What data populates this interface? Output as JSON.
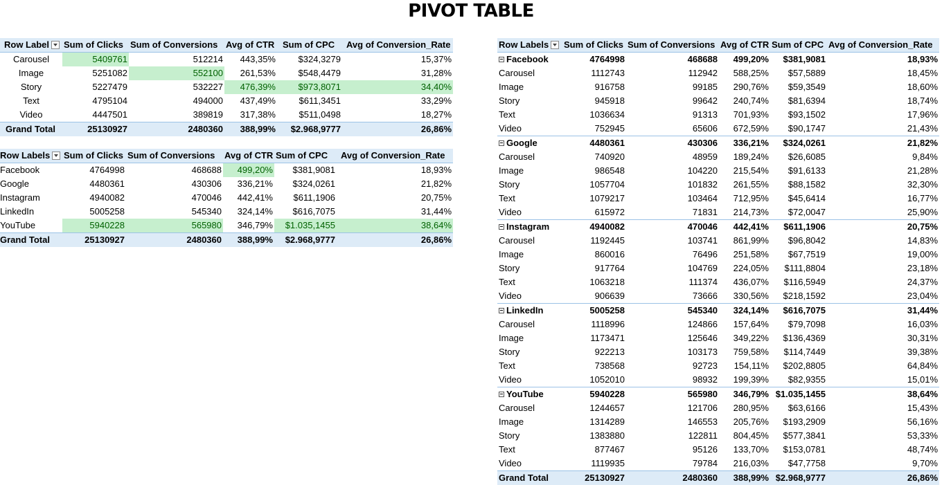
{
  "title": "PIVOT TABLE",
  "table1": {
    "headers": [
      "Row Label",
      "Sum of Clicks",
      "Sum of Conversions",
      "Avg of CTR",
      "Sum of CPC",
      "Avg of Conversion_Rate"
    ],
    "rows": [
      {
        "label": "Carousel",
        "clicks": "5409761",
        "conversions": "512214",
        "ctr": "443,35%",
        "cpc": "$324,3279",
        "rate": "15,37%"
      },
      {
        "label": "Image",
        "clicks": "5251082",
        "conversions": "552100",
        "ctr": "261,53%",
        "cpc": "$548,4479",
        "rate": "31,28%"
      },
      {
        "label": "Story",
        "clicks": "5227479",
        "conversions": "532227",
        "ctr": "476,39%",
        "cpc": "$973,8071",
        "rate": "34,40%"
      },
      {
        "label": "Text",
        "clicks": "4795104",
        "conversions": "494000",
        "ctr": "437,49%",
        "cpc": "$611,3451",
        "rate": "33,29%"
      },
      {
        "label": "Video",
        "clicks": "4447501",
        "conversions": "389819",
        "ctr": "317,38%",
        "cpc": "$511,0498",
        "rate": "18,27%"
      }
    ],
    "total": {
      "label": "Grand Total",
      "clicks": "25130927",
      "conversions": "2480360",
      "ctr": "388,99%",
      "cpc": "$2.968,9777",
      "rate": "26,86%"
    }
  },
  "table2": {
    "headers": [
      "Row Labels",
      "Sum of Clicks",
      "Sum of Conversions",
      "Avg of CTR",
      "Sum of CPC",
      "Avg of Conversion_Rate"
    ],
    "rows": [
      {
        "label": "Facebook",
        "clicks": "4764998",
        "conversions": "468688",
        "ctr": "499,20%",
        "cpc": "$381,9081",
        "rate": "18,93%"
      },
      {
        "label": "Google",
        "clicks": "4480361",
        "conversions": "430306",
        "ctr": "336,21%",
        "cpc": "$324,0261",
        "rate": "21,82%"
      },
      {
        "label": "Instagram",
        "clicks": "4940082",
        "conversions": "470046",
        "ctr": "442,41%",
        "cpc": "$611,1906",
        "rate": "20,75%"
      },
      {
        "label": "LinkedIn",
        "clicks": "5005258",
        "conversions": "545340",
        "ctr": "324,14%",
        "cpc": "$616,7075",
        "rate": "31,44%"
      },
      {
        "label": "YouTube",
        "clicks": "5940228",
        "conversions": "565980",
        "ctr": "346,79%",
        "cpc": "$1.035,1455",
        "rate": "38,64%"
      }
    ],
    "total": {
      "label": "Grand Total",
      "clicks": "25130927",
      "conversions": "2480360",
      "ctr": "388,99%",
      "cpc": "$2.968,9777",
      "rate": "26,86%"
    }
  },
  "table3": {
    "headers": [
      "Row Labels",
      "Sum of Clicks",
      "Sum of Conversions",
      "Avg of CTR",
      "Sum of CPC",
      "Avg of Conversion_Rate"
    ],
    "groups": [
      {
        "label": "Facebook",
        "clicks": "4764998",
        "conversions": "468688",
        "ctr": "499,20%",
        "cpc": "$381,9081",
        "rate": "18,93%",
        "items": [
          {
            "label": "Carousel",
            "clicks": "1112743",
            "conversions": "112942",
            "ctr": "588,25%",
            "cpc": "$57,5889",
            "rate": "18,45%"
          },
          {
            "label": "Image",
            "clicks": "916758",
            "conversions": "99185",
            "ctr": "290,76%",
            "cpc": "$59,3549",
            "rate": "18,60%"
          },
          {
            "label": "Story",
            "clicks": "945918",
            "conversions": "99642",
            "ctr": "240,74%",
            "cpc": "$81,6394",
            "rate": "18,74%"
          },
          {
            "label": "Text",
            "clicks": "1036634",
            "conversions": "91313",
            "ctr": "701,93%",
            "cpc": "$93,1502",
            "rate": "17,96%"
          },
          {
            "label": "Video",
            "clicks": "752945",
            "conversions": "65606",
            "ctr": "672,59%",
            "cpc": "$90,1747",
            "rate": "21,43%"
          }
        ]
      },
      {
        "label": "Google",
        "clicks": "4480361",
        "conversions": "430306",
        "ctr": "336,21%",
        "cpc": "$324,0261",
        "rate": "21,82%",
        "items": [
          {
            "label": "Carousel",
            "clicks": "740920",
            "conversions": "48959",
            "ctr": "189,24%",
            "cpc": "$26,6085",
            "rate": "9,84%"
          },
          {
            "label": "Image",
            "clicks": "986548",
            "conversions": "104220",
            "ctr": "215,54%",
            "cpc": "$91,6133",
            "rate": "21,28%"
          },
          {
            "label": "Story",
            "clicks": "1057704",
            "conversions": "101832",
            "ctr": "261,55%",
            "cpc": "$88,1582",
            "rate": "32,30%"
          },
          {
            "label": "Text",
            "clicks": "1079217",
            "conversions": "103464",
            "ctr": "712,95%",
            "cpc": "$45,6414",
            "rate": "16,77%"
          },
          {
            "label": "Video",
            "clicks": "615972",
            "conversions": "71831",
            "ctr": "214,73%",
            "cpc": "$72,0047",
            "rate": "25,90%"
          }
        ]
      },
      {
        "label": "Instagram",
        "clicks": "4940082",
        "conversions": "470046",
        "ctr": "442,41%",
        "cpc": "$611,1906",
        "rate": "20,75%",
        "items": [
          {
            "label": "Carousel",
            "clicks": "1192445",
            "conversions": "103741",
            "ctr": "861,99%",
            "cpc": "$96,8042",
            "rate": "14,83%"
          },
          {
            "label": "Image",
            "clicks": "860016",
            "conversions": "76496",
            "ctr": "251,58%",
            "cpc": "$67,7519",
            "rate": "19,00%"
          },
          {
            "label": "Story",
            "clicks": "917764",
            "conversions": "104769",
            "ctr": "224,05%",
            "cpc": "$111,8804",
            "rate": "23,18%"
          },
          {
            "label": "Text",
            "clicks": "1063218",
            "conversions": "111374",
            "ctr": "436,07%",
            "cpc": "$116,5949",
            "rate": "24,37%"
          },
          {
            "label": "Video",
            "clicks": "906639",
            "conversions": "73666",
            "ctr": "330,56%",
            "cpc": "$218,1592",
            "rate": "23,04%"
          }
        ]
      },
      {
        "label": "LinkedIn",
        "clicks": "5005258",
        "conversions": "545340",
        "ctr": "324,14%",
        "cpc": "$616,7075",
        "rate": "31,44%",
        "items": [
          {
            "label": "Carousel",
            "clicks": "1118996",
            "conversions": "124866",
            "ctr": "157,64%",
            "cpc": "$79,7098",
            "rate": "16,03%"
          },
          {
            "label": "Image",
            "clicks": "1173471",
            "conversions": "125646",
            "ctr": "349,22%",
            "cpc": "$136,4369",
            "rate": "30,31%"
          },
          {
            "label": "Story",
            "clicks": "922213",
            "conversions": "103173",
            "ctr": "759,58%",
            "cpc": "$114,7449",
            "rate": "39,38%"
          },
          {
            "label": "Text",
            "clicks": "738568",
            "conversions": "92723",
            "ctr": "154,11%",
            "cpc": "$202,8805",
            "rate": "64,84%"
          },
          {
            "label": "Video",
            "clicks": "1052010",
            "conversions": "98932",
            "ctr": "199,39%",
            "cpc": "$82,9355",
            "rate": "15,01%"
          }
        ]
      },
      {
        "label": "YouTube",
        "clicks": "5940228",
        "conversions": "565980",
        "ctr": "346,79%",
        "cpc": "$1.035,1455",
        "rate": "38,64%",
        "items": [
          {
            "label": "Carousel",
            "clicks": "1244657",
            "conversions": "121706",
            "ctr": "280,95%",
            "cpc": "$63,6166",
            "rate": "15,43%"
          },
          {
            "label": "Image",
            "clicks": "1314289",
            "conversions": "146553",
            "ctr": "205,76%",
            "cpc": "$193,2909",
            "rate": "56,16%"
          },
          {
            "label": "Story",
            "clicks": "1383880",
            "conversions": "122811",
            "ctr": "804,45%",
            "cpc": "$577,3841",
            "rate": "53,33%"
          },
          {
            "label": "Text",
            "clicks": "877467",
            "conversions": "95126",
            "ctr": "133,70%",
            "cpc": "$153,0781",
            "rate": "48,74%"
          },
          {
            "label": "Video",
            "clicks": "1119935",
            "conversions": "79784",
            "ctr": "216,03%",
            "cpc": "$47,7758",
            "rate": "9,70%"
          }
        ]
      }
    ],
    "total": {
      "label": "Grand Total",
      "clicks": "25130927",
      "conversions": "2480360",
      "ctr": "388,99%",
      "cpc": "$2.968,9777",
      "rate": "26,86%"
    }
  },
  "colors": {
    "header_fill": "#ddebf7",
    "header_border": "#9bc2e6",
    "highlight_fill": "#c6efce",
    "highlight_text": "#006100"
  }
}
